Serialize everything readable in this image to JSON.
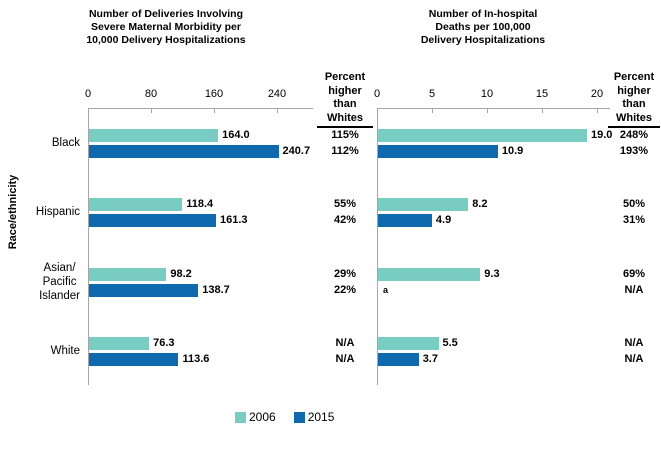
{
  "header": {
    "left_chart_title": "Number of Deliveries Involving\nSevere Maternal Morbidity per\n10,000 Delivery Hospitalizations",
    "right_chart_title": "Number of In-hospital\nDeaths per 100,000\nDelivery Hospitalizations",
    "percent_col_header": "Percent\nhigher\nthan\nWhites"
  },
  "y_axis_label": "Race/ethnicity",
  "footnote": {
    "marker": "a"
  },
  "colors": {
    "series_2006": "#79CCC2",
    "series_2015": "#0E69AF",
    "axis": "#A6A6A6",
    "text": "#000000"
  },
  "legend": {
    "items": [
      {
        "label": "2006",
        "color": "#79CCC2"
      },
      {
        "label": "2015",
        "color": "#0E69AF"
      }
    ]
  },
  "chart_data": [
    {
      "type": "bar",
      "orientation": "horizontal",
      "title": "Number of Deliveries Involving Severe Maternal Morbidity per 10,000 Delivery Hospitalizations",
      "categories": [
        "Black",
        "Hispanic",
        "Asian/\nPacific\nIslander",
        "White"
      ],
      "x_ticks": [
        0,
        80,
        160,
        240
      ],
      "xlim": [
        0,
        286
      ],
      "grid": false,
      "series": [
        {
          "name": "2006",
          "color": "#79CCC2",
          "values": [
            164.0,
            118.4,
            98.2,
            76.3
          ],
          "labels": [
            "164.0",
            "118.4",
            "98.2",
            "76.3"
          ]
        },
        {
          "name": "2015",
          "color": "#0E69AF",
          "values": [
            240.7,
            161.3,
            138.7,
            113.6
          ],
          "labels": [
            "240.7",
            "161.3",
            "138.7",
            "113.6"
          ]
        }
      ],
      "percent_higher_than_whites": {
        "2006": [
          "115%",
          "55%",
          "29%",
          "N/A"
        ],
        "2015": [
          "112%",
          "42%",
          "22%",
          "N/A"
        ]
      }
    },
    {
      "type": "bar",
      "orientation": "horizontal",
      "title": "Number of In-hospital Deaths per 100,000 Delivery Hospitalizations",
      "categories": [
        "Black",
        "Hispanic",
        "Asian/\nPacific\nIslander",
        "White"
      ],
      "x_ticks": [
        0,
        5,
        10,
        15,
        20
      ],
      "xlim": [
        0,
        21.2
      ],
      "grid": false,
      "series": [
        {
          "name": "2006",
          "color": "#79CCC2",
          "values": [
            19.0,
            8.2,
            9.3,
            5.5
          ],
          "labels": [
            "19.0",
            "8.2",
            "9.3",
            "5.5"
          ]
        },
        {
          "name": "2015",
          "color": "#0E69AF",
          "values": [
            10.9,
            4.9,
            null,
            3.7
          ],
          "labels": [
            "10.9",
            "4.9",
            "a",
            "3.7"
          ]
        }
      ],
      "percent_higher_than_whites": {
        "2006": [
          "248%",
          "50%",
          "69%",
          "N/A"
        ],
        "2015": [
          "193%",
          "31%",
          "N/A",
          "N/A"
        ]
      }
    }
  ]
}
